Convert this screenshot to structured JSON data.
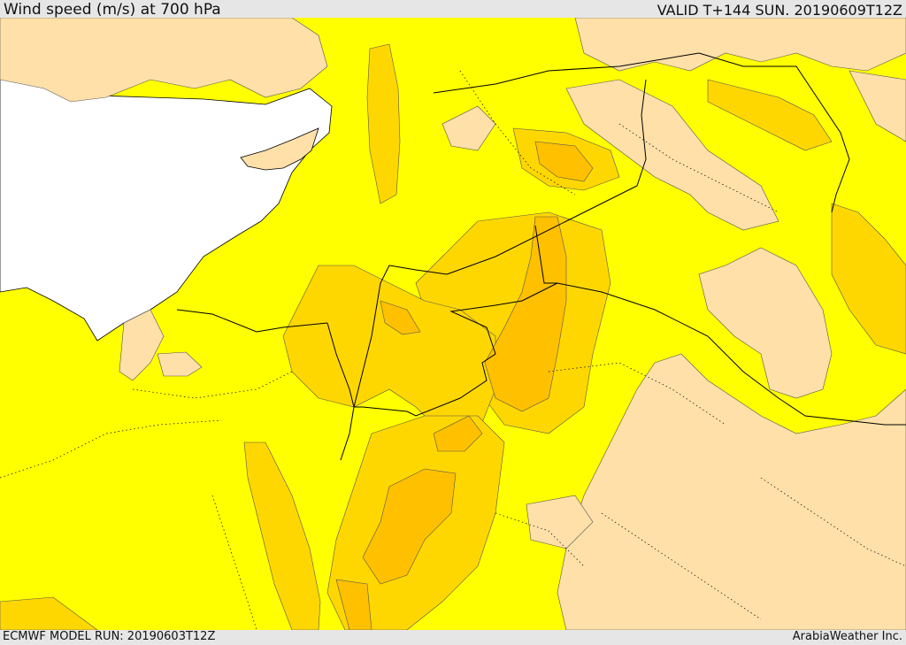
{
  "header": {
    "title": "Wind speed (m/s) at 700 hPa",
    "valid": "VALID T+144 SUN. 20190609T12Z"
  },
  "footer": {
    "model_run": "ECMWF MODEL RUN: 20190603T12Z",
    "credit": "ArabiaWeather Inc."
  },
  "colors": {
    "sea": "#ffffff",
    "low": "#ffe0a8",
    "mid": "#ffff00",
    "high": "#ffd700",
    "higher": "#ffc000",
    "highest": "#ffa800",
    "border": "#000000"
  }
}
